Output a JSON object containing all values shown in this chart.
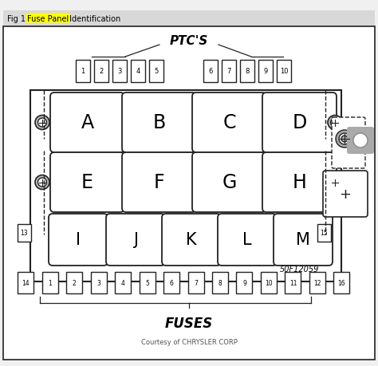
{
  "bg_color": "#f0f0f0",
  "inner_bg": "#ffffff",
  "border_color": "#222222",
  "title_prefix": "Fig 1: ",
  "title_highlight": "Fuse Panel",
  "title_suffix": " Identification",
  "ptcs_label": "PTC'S",
  "fuses_label": "FUSES",
  "courtesy_label": "Courtesy of CHRYSLER CORP",
  "diagram_code": "50F12059",
  "ptc_left": [
    1,
    2,
    3,
    4,
    5
  ],
  "ptc_right": [
    6,
    7,
    8,
    9,
    10
  ],
  "row1_labels": [
    "A",
    "B",
    "C",
    "D"
  ],
  "row2_labels": [
    "E",
    "F",
    "G",
    "H"
  ],
  "row3_labels": [
    "I",
    "J",
    "K",
    "L",
    "M"
  ],
  "bottom_fuses": [
    "14",
    "1",
    "2",
    "3",
    "4",
    "5",
    "6",
    "7",
    "8",
    "9",
    "10",
    "11",
    "12",
    "16"
  ]
}
